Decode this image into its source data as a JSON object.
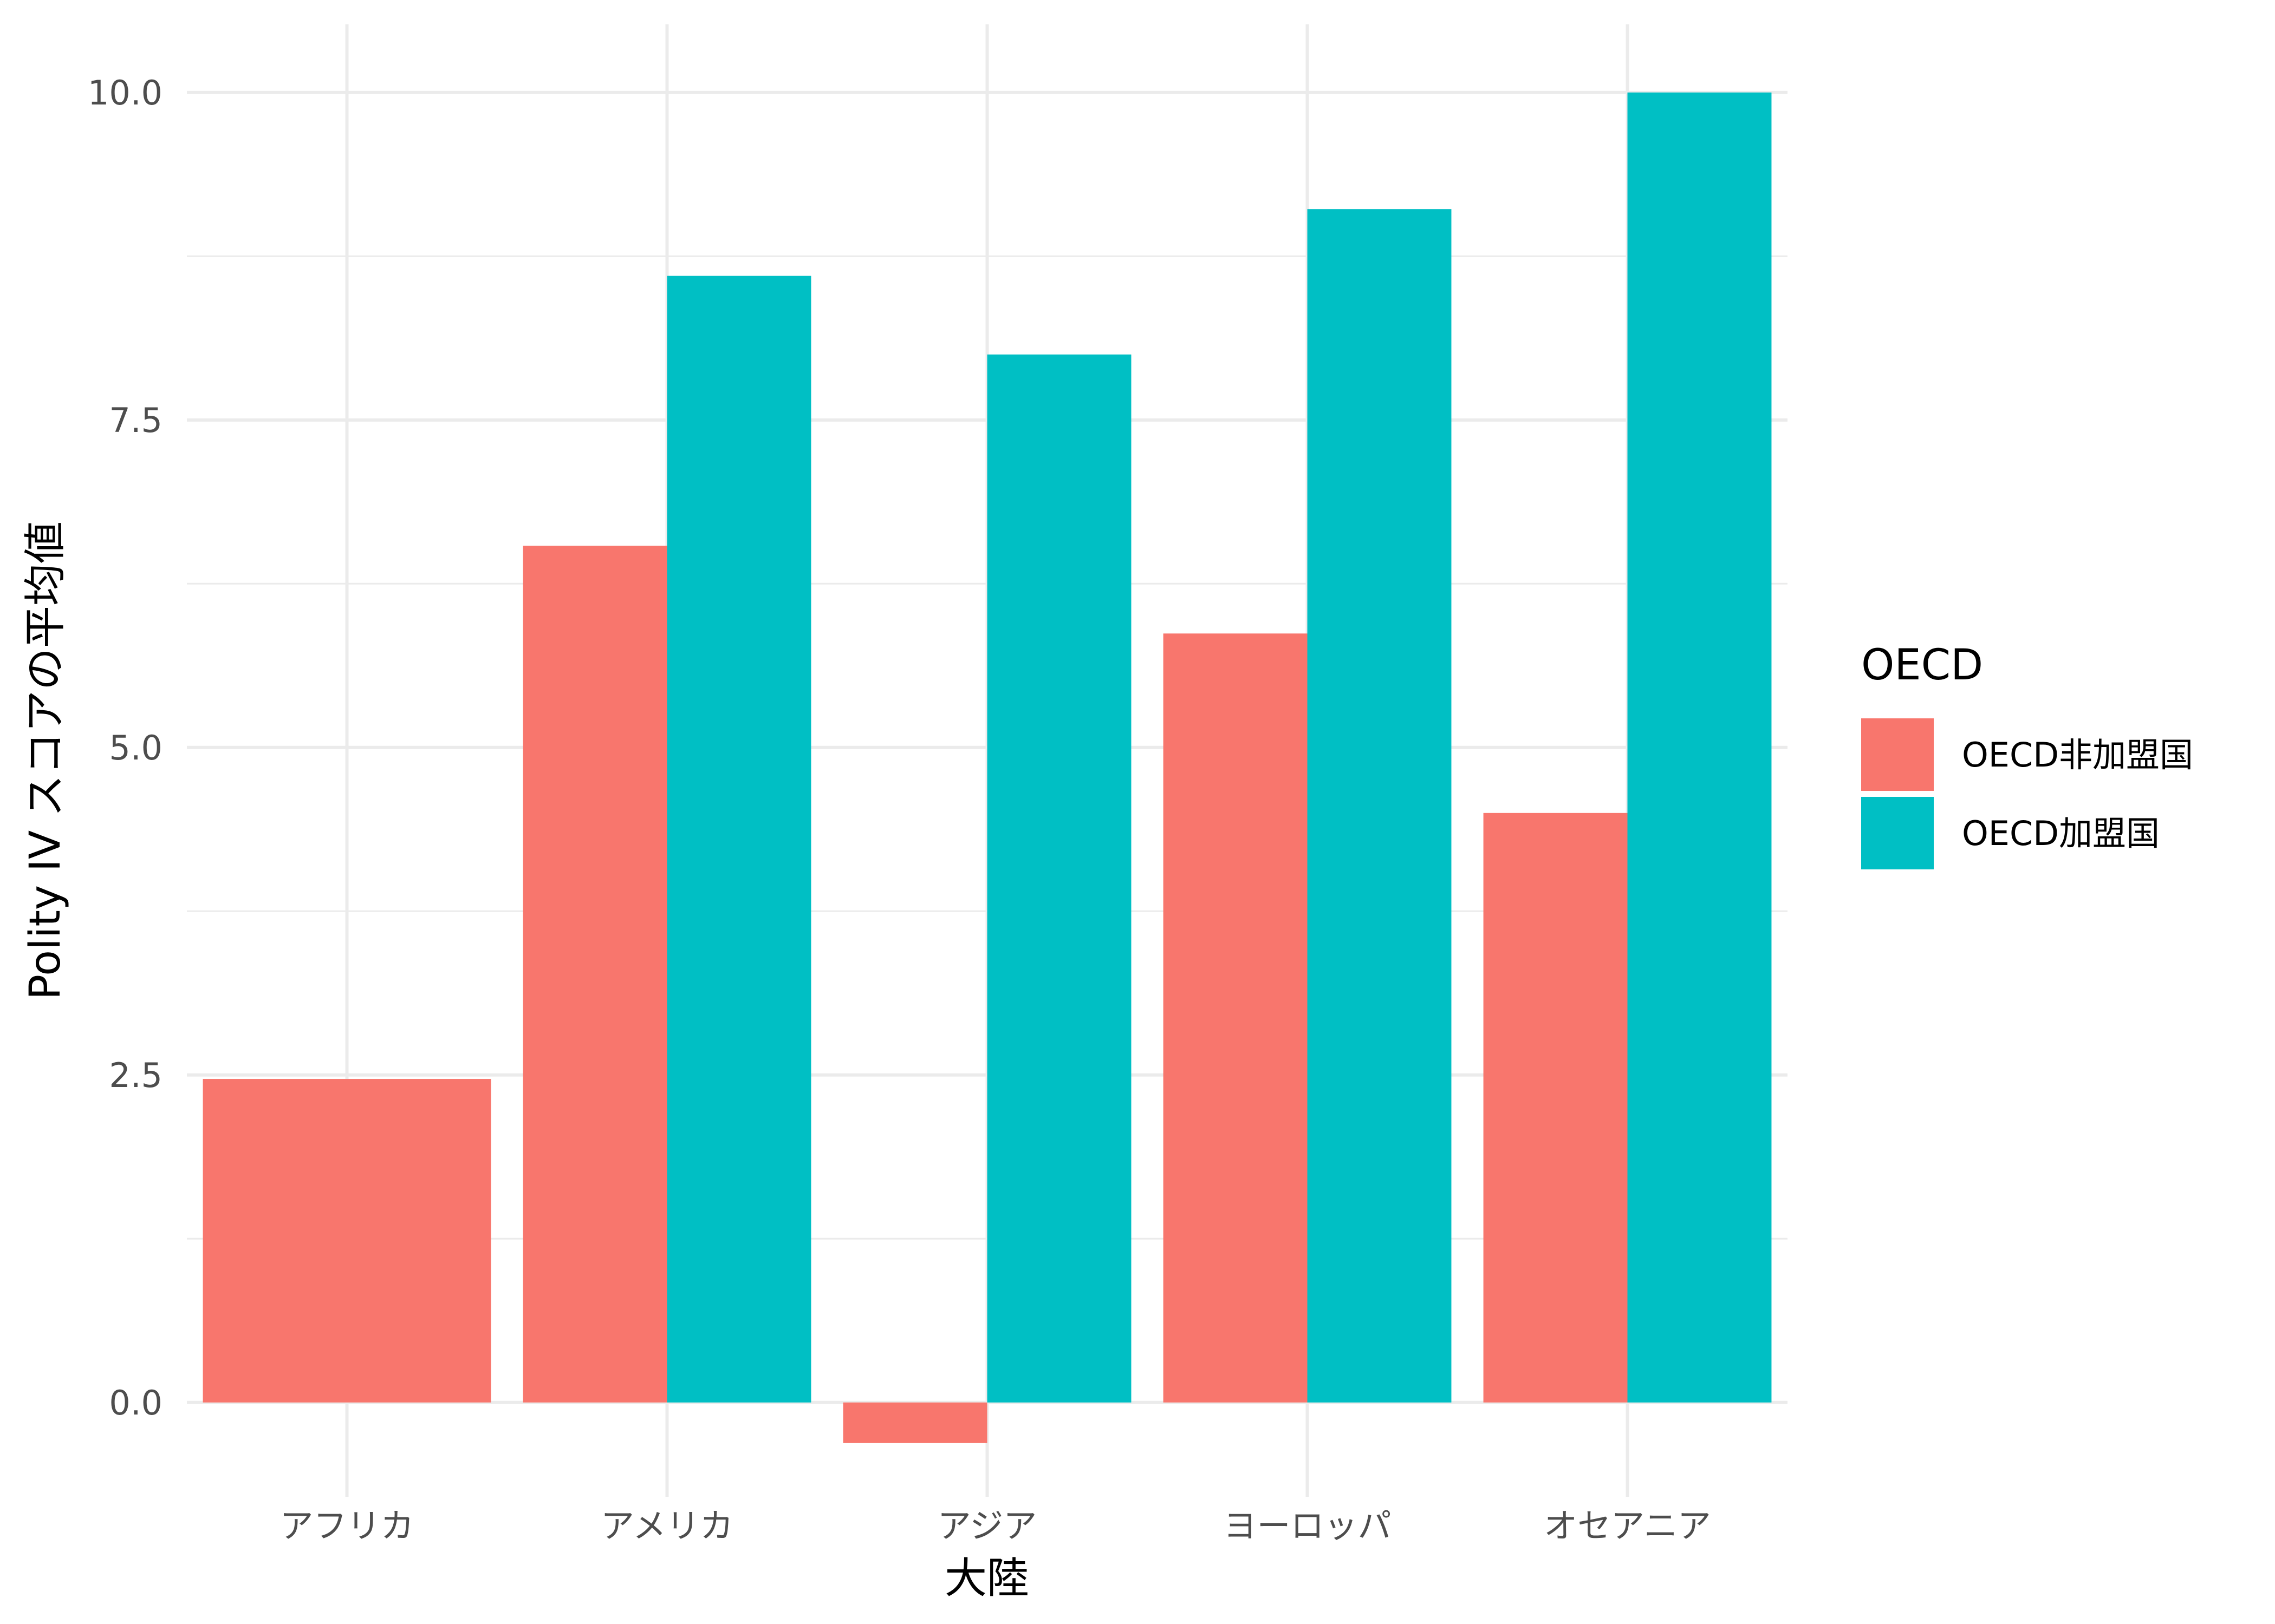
{
  "chart_data": {
    "type": "bar",
    "title": "",
    "xlabel": "大陸",
    "ylabel": "Polity IV スコアの平均値",
    "categories": [
      "アフリカ",
      "アメリカ",
      "アジア",
      "ヨーロッパ",
      "オセアニア"
    ],
    "series": [
      {
        "name": "OECD非加盟国",
        "color": "#F8766D",
        "values": [
          2.47,
          6.54,
          -0.31,
          5.87,
          4.5
        ]
      },
      {
        "name": "OECD加盟国",
        "color": "#00BFC4",
        "values": [
          null,
          8.6,
          8.0,
          9.11,
          10.0
        ]
      }
    ],
    "ylim": [
      -0.72,
      10.52
    ],
    "yticks": [
      0.0,
      2.5,
      5.0,
      7.5,
      10.0
    ],
    "ytick_labels": [
      "0.0",
      "2.5",
      "5.0",
      "7.5",
      "10.0"
    ],
    "grid": true,
    "legend": {
      "title": "OECD",
      "position": "right"
    }
  }
}
